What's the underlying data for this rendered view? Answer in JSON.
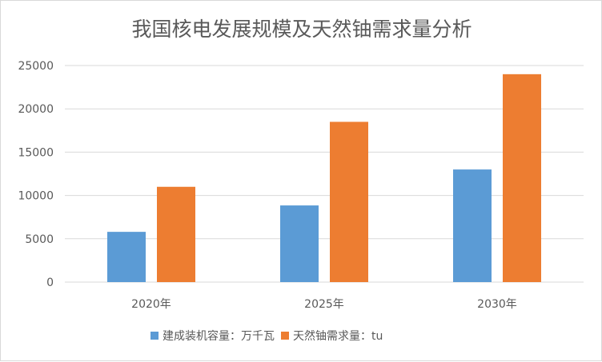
{
  "chart_data": {
    "type": "bar",
    "title": "我国核电发展规模及天然铀需求量分析",
    "categories": [
      "2020年",
      "2025年",
      "2030年"
    ],
    "series": [
      {
        "name": "建成装机容量：万千瓦",
        "values": [
          5800,
          8850,
          13000
        ],
        "color": "#5b9bd5"
      },
      {
        "name": "天然铀需求量：tu",
        "values": [
          11000,
          18500,
          24000
        ],
        "color": "#ed7d31"
      }
    ],
    "yticks": [
      "0",
      "5000",
      "10000",
      "15000",
      "20000",
      "25000"
    ],
    "ylim": [
      0,
      25000
    ],
    "grid": true,
    "legend": "bottom"
  }
}
